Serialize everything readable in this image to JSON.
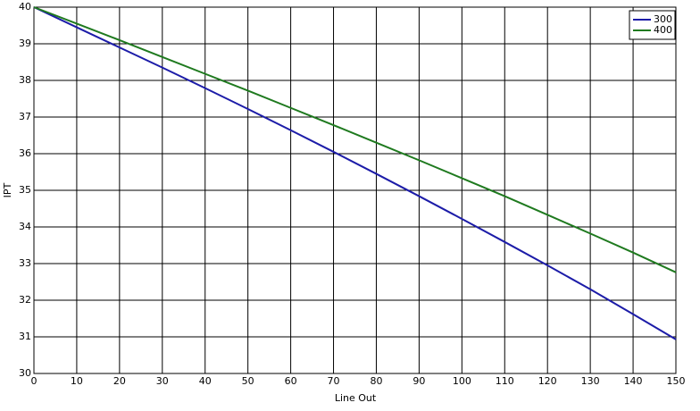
{
  "chart_data": {
    "type": "line",
    "x_label": "Line Out",
    "y_label": "IPT",
    "x": [
      0,
      10,
      20,
      30,
      40,
      50,
      60,
      70,
      80,
      90,
      100,
      110,
      120,
      130,
      140,
      150
    ],
    "series": [
      {
        "name": "300",
        "color": "#1c1ca8",
        "values": [
          40,
          39.45,
          38.9,
          38.35,
          37.79,
          37.22,
          36.64,
          36.05,
          35.45,
          34.84,
          34.22,
          33.59,
          32.95,
          32.3,
          31.62,
          30.93
        ]
      },
      {
        "name": "400",
        "color": "#1f7a1f",
        "values": [
          40,
          39.55,
          39.1,
          38.64,
          38.18,
          37.72,
          37.25,
          36.78,
          36.3,
          35.82,
          35.33,
          34.84,
          34.33,
          33.82,
          33.3,
          32.76
        ]
      }
    ],
    "xlim": [
      0,
      150
    ],
    "xticks": [
      0,
      10,
      20,
      30,
      40,
      50,
      60,
      70,
      80,
      90,
      100,
      110,
      120,
      130,
      140,
      150
    ],
    "ylim": [
      30,
      40
    ],
    "yticks": [
      30,
      31,
      32,
      33,
      34,
      35,
      36,
      37,
      38,
      39,
      40
    ],
    "grid": true,
    "legend": "upper-right"
  }
}
